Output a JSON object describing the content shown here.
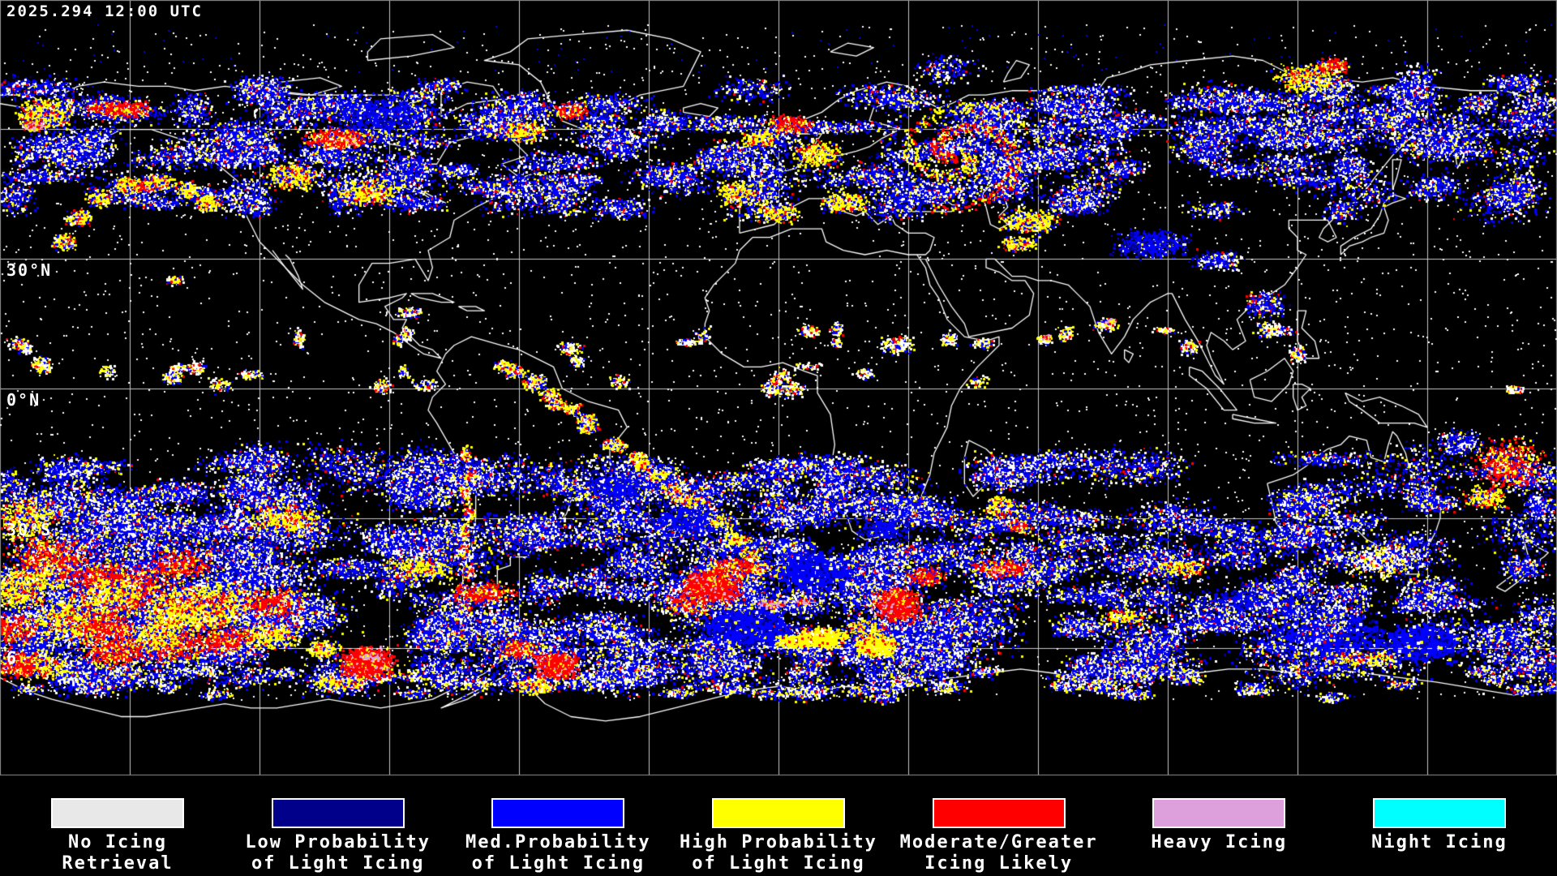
{
  "header": {
    "timestamp": "2025.294 12:00 UTC"
  },
  "map": {
    "lat_labels": [
      {
        "text": "30°N"
      },
      {
        "text": "0°N"
      },
      {
        "text": "30°S"
      },
      {
        "text": "6"
      }
    ],
    "colors": {
      "background": "#000000",
      "coastline": "#ffffff",
      "graticule": "#c8c8c8",
      "border": "#909090"
    }
  },
  "legend": {
    "items": [
      {
        "name": "no-icing-retrieval",
        "line1": "No Icing",
        "line2": "Retrieval",
        "color": "#e8e8e8"
      },
      {
        "name": "low-prob-light-icing",
        "line1": "Low Probability",
        "line2": "of Light Icing",
        "color": "#00008b"
      },
      {
        "name": "med-prob-light-icing",
        "line1": "Med.Probability",
        "line2": "of Light Icing",
        "color": "#0000ff"
      },
      {
        "name": "high-prob-light-icing",
        "line1": "High Probability",
        "line2": "of Light Icing",
        "color": "#ffff00"
      },
      {
        "name": "moderate-greater-icing",
        "line1": "Moderate/Greater",
        "line2": "Icing Likely",
        "color": "#ff0000"
      },
      {
        "name": "heavy-icing",
        "line1": "Heavy Icing",
        "line2": "",
        "color": "#dda0dd"
      },
      {
        "name": "night-icing",
        "line1": "Night Icing",
        "line2": "",
        "color": "#00ffff"
      }
    ]
  }
}
